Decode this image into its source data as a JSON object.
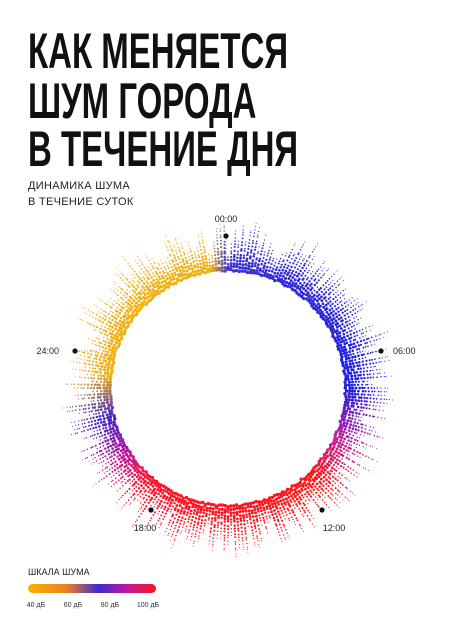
{
  "header": {
    "title": [
      "КАК МЕНЯЕТСЯ",
      "ШУМ ГОРОДА",
      "В ТЕЧЕНИЕ ДНЯ"
    ],
    "subtitle": [
      "ДИНАМИКА ШУМА",
      "В ТЕЧЕНИЕ СУТОК"
    ]
  },
  "clock": {
    "labels": [
      "00:00",
      "06:00",
      "12:00",
      "18:00",
      "24:00"
    ]
  },
  "legend": {
    "title": "ШКАЛА ШУМА",
    "labels": [
      "40 дБ",
      "60 дБ",
      "80 дБ",
      "100 дБ"
    ]
  }
}
